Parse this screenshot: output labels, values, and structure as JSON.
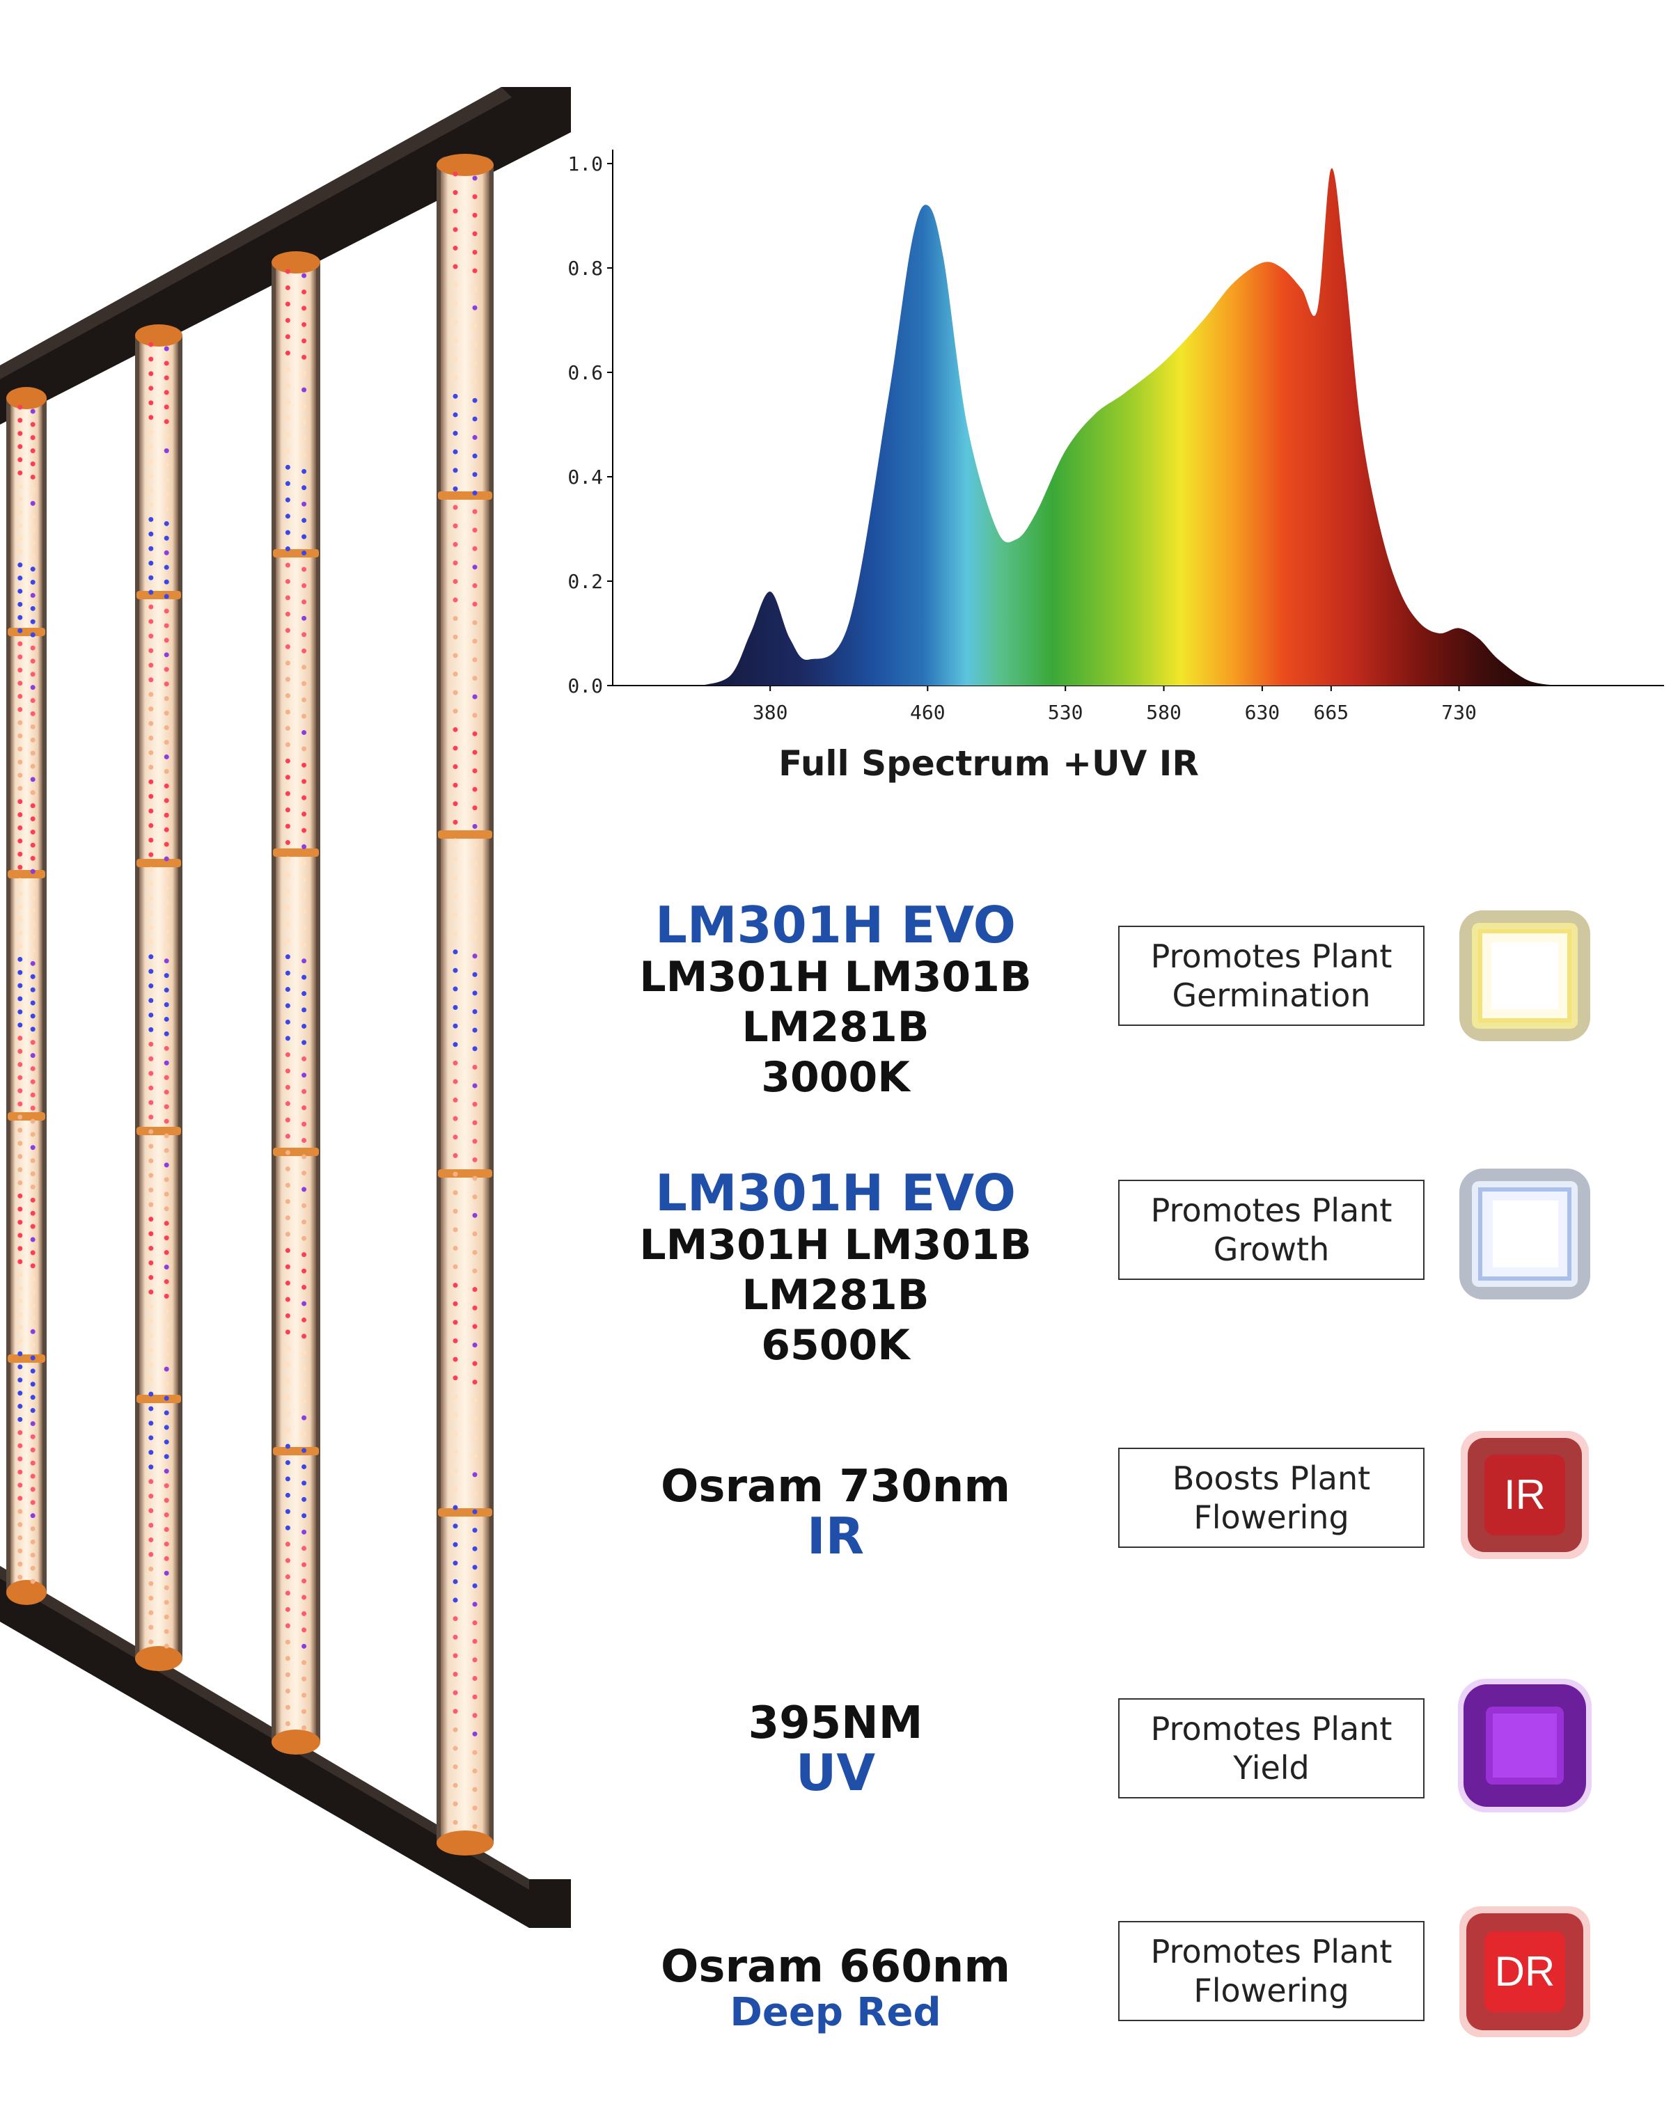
{
  "chart_data": {
    "type": "area",
    "title": "Full Spectrum +UV IR",
    "xlabel": "",
    "ylabel": "",
    "ylim": [
      0,
      1.0
    ],
    "y_ticks": [
      "0.0",
      "0.2",
      "0.4",
      "0.6",
      "0.8",
      "1.0"
    ],
    "x_ticks": [
      "380",
      "460",
      "530",
      "580",
      "630",
      "665",
      "730"
    ],
    "grid": false,
    "series": [
      {
        "x": [
          345,
          360,
          370,
          380,
          390,
          400,
          420,
          440,
          452,
          460,
          468,
          480,
          495,
          505,
          515,
          530,
          545,
          560,
          580,
          600,
          615,
          630,
          640,
          650,
          658,
          665,
          672,
          680,
          690,
          700,
          710,
          720,
          730,
          740,
          750,
          765,
          780
        ],
        "y": [
          0.0,
          0.02,
          0.1,
          0.18,
          0.09,
          0.05,
          0.12,
          0.55,
          0.85,
          0.92,
          0.82,
          0.5,
          0.3,
          0.28,
          0.33,
          0.45,
          0.52,
          0.56,
          0.62,
          0.7,
          0.77,
          0.81,
          0.8,
          0.76,
          0.72,
          0.99,
          0.8,
          0.5,
          0.3,
          0.18,
          0.12,
          0.1,
          0.11,
          0.09,
          0.05,
          0.01,
          0.0
        ]
      }
    ]
  },
  "rows": [
    {
      "line1": "LM301H EVO",
      "line2": "LM301H LM301B LM281B",
      "line3": "3000K",
      "benefit1": "Promotes Plant",
      "benefit2": "Germination",
      "chip_label": "",
      "chip_color": "#f5e9a8"
    },
    {
      "line1": "LM301H EVO",
      "line2": "LM301H LM301B LM281B",
      "line3": "6500K",
      "benefit1": "Promotes Plant",
      "benefit2": "Growth",
      "chip_label": "",
      "chip_color": "#dde6fa"
    },
    {
      "line1": "Osram 730nm",
      "line2": "IR",
      "benefit1": "Boosts Plant",
      "benefit2": "Flowering",
      "chip_label": "IR",
      "chip_color": "#c0282c"
    },
    {
      "line1": "395NM",
      "line2": "UV",
      "benefit1": "Promotes Plant",
      "benefit2": "Yield",
      "chip_label": "",
      "chip_color": "#8a22c8"
    },
    {
      "line1": "Osram 660nm",
      "line2": "Deep Red",
      "benefit1": "Promotes Plant",
      "benefit2": "Flowering",
      "chip_label": "DR",
      "chip_color": "#e0222a"
    }
  ],
  "colors": {
    "blue_text": "#1f4fa8",
    "frame": "#1c1614",
    "orange_cap": "#d9782a"
  },
  "icons": [
    "led-fixture-illustration",
    "led-chip-warm",
    "led-chip-cool",
    "led-chip-ir",
    "led-chip-uv",
    "led-chip-dr"
  ]
}
